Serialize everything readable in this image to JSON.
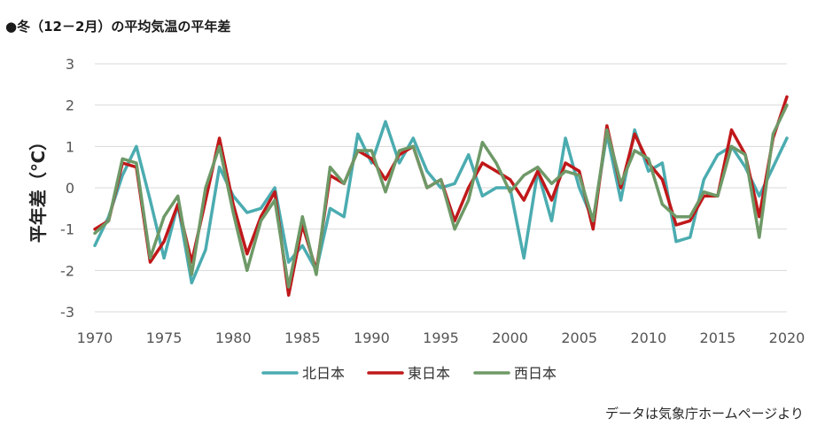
{
  "title": "●冬（12－2月）の平均気温の平年差",
  "source": "データは気象庁ホームページより",
  "chart_data": {
    "type": "line",
    "ylabel": "平年差（℃）",
    "xlabel": "",
    "ylim": [
      -3,
      3
    ],
    "xlim": [
      1970,
      2020
    ],
    "yticks": [
      3,
      2,
      1,
      0,
      -1,
      -2,
      -3
    ],
    "xticks": [
      1970,
      1975,
      1980,
      1985,
      1990,
      1995,
      2000,
      2005,
      2010,
      2015,
      2020
    ],
    "grid": true,
    "legend_position": "bottom",
    "x": [
      1970,
      1971,
      1972,
      1973,
      1974,
      1975,
      1976,
      1977,
      1978,
      1979,
      1980,
      1981,
      1982,
      1983,
      1984,
      1985,
      1986,
      1987,
      1988,
      1989,
      1990,
      1991,
      1992,
      1993,
      1994,
      1995,
      1996,
      1997,
      1998,
      1999,
      2000,
      2001,
      2002,
      2003,
      2004,
      2005,
      2006,
      2007,
      2008,
      2009,
      2010,
      2011,
      2012,
      2013,
      2014,
      2015,
      2016,
      2017,
      2018,
      2019,
      2020
    ],
    "series": [
      {
        "name": "北日本",
        "color": "#4bacb0",
        "values": [
          -1.4,
          -0.7,
          0.3,
          1.0,
          -0.3,
          -1.7,
          -0.4,
          -2.3,
          -1.5,
          0.5,
          -0.2,
          -0.6,
          -0.5,
          0.0,
          -1.8,
          -1.4,
          -2.0,
          -0.5,
          -0.7,
          1.3,
          0.6,
          1.6,
          0.6,
          1.2,
          0.4,
          0.0,
          0.1,
          0.8,
          -0.2,
          0.0,
          0.0,
          -1.7,
          0.4,
          -0.8,
          1.2,
          0.0,
          -0.8,
          1.3,
          -0.3,
          1.4,
          0.4,
          0.6,
          -1.3,
          -1.2,
          0.2,
          0.8,
          1.0,
          0.5,
          -0.2,
          0.5,
          1.2
        ]
      },
      {
        "name": "東日本",
        "color": "#c0181a",
        "values": [
          -1.0,
          -0.8,
          0.6,
          0.5,
          -1.8,
          -1.3,
          -0.4,
          -1.8,
          -0.3,
          1.2,
          -0.4,
          -1.6,
          -0.7,
          -0.1,
          -2.6,
          -0.9,
          -2.0,
          0.3,
          0.1,
          0.9,
          0.7,
          0.2,
          0.8,
          1.0,
          0.0,
          0.2,
          -0.8,
          0.0,
          0.6,
          0.4,
          0.2,
          -0.3,
          0.4,
          -0.3,
          0.6,
          0.4,
          -1.0,
          1.5,
          0.0,
          1.3,
          0.6,
          0.2,
          -0.9,
          -0.8,
          -0.2,
          -0.2,
          1.4,
          0.8,
          -0.7,
          1.2,
          2.2
        ]
      },
      {
        "name": "西日本",
        "color": "#6e9967",
        "values": [
          -1.1,
          -0.8,
          0.7,
          0.6,
          -1.7,
          -0.7,
          -0.2,
          -2.1,
          0.0,
          1.0,
          -0.6,
          -2.0,
          -0.8,
          -0.3,
          -2.4,
          -0.7,
          -2.1,
          0.5,
          0.1,
          0.9,
          0.9,
          -0.1,
          0.9,
          1.0,
          0.0,
          0.2,
          -1.0,
          -0.3,
          1.1,
          0.6,
          -0.1,
          0.3,
          0.5,
          0.1,
          0.4,
          0.3,
          -0.8,
          1.4,
          0.1,
          0.9,
          0.7,
          -0.4,
          -0.7,
          -0.7,
          -0.1,
          -0.2,
          1.0,
          0.8,
          -1.2,
          1.3,
          2.0
        ]
      }
    ]
  }
}
